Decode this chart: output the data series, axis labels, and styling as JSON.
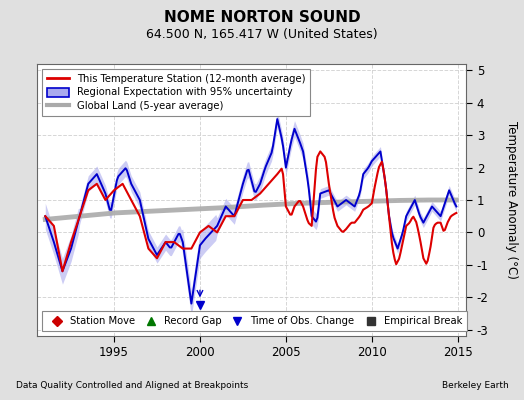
{
  "title": "NOME NORTON SOUND",
  "subtitle": "64.500 N, 165.417 W (United States)",
  "xlabel_left": "Data Quality Controlled and Aligned at Breakpoints",
  "xlabel_right": "Berkeley Earth",
  "ylabel": "Temperature Anomaly (°C)",
  "ylim": [
    -3.2,
    5.2
  ],
  "yticks": [
    -3,
    -2,
    -1,
    0,
    1,
    2,
    3,
    4,
    5
  ],
  "xlim": [
    1990.5,
    2015.5
  ],
  "xticks": [
    1995,
    2000,
    2005,
    2010,
    2015
  ],
  "bg_color": "#e0e0e0",
  "plot_bg_color": "#ffffff",
  "red_color": "#dd0000",
  "blue_color": "#0000cc",
  "blue_fill_color": "#aaaaee",
  "gray_color": "#aaaaaa",
  "legend_entries": [
    "This Temperature Station (12-month average)",
    "Regional Expectation with 95% uncertainty",
    "Global Land (5-year average)"
  ],
  "bottom_legend": [
    {
      "marker": "D",
      "color": "#cc0000",
      "label": "Station Move"
    },
    {
      "marker": "^",
      "color": "#007700",
      "label": "Record Gap"
    },
    {
      "marker": "v",
      "color": "#0000cc",
      "label": "Time of Obs. Change"
    },
    {
      "marker": "s",
      "color": "#333333",
      "label": "Empirical Break"
    }
  ],
  "title_fontsize": 11,
  "subtitle_fontsize": 9
}
